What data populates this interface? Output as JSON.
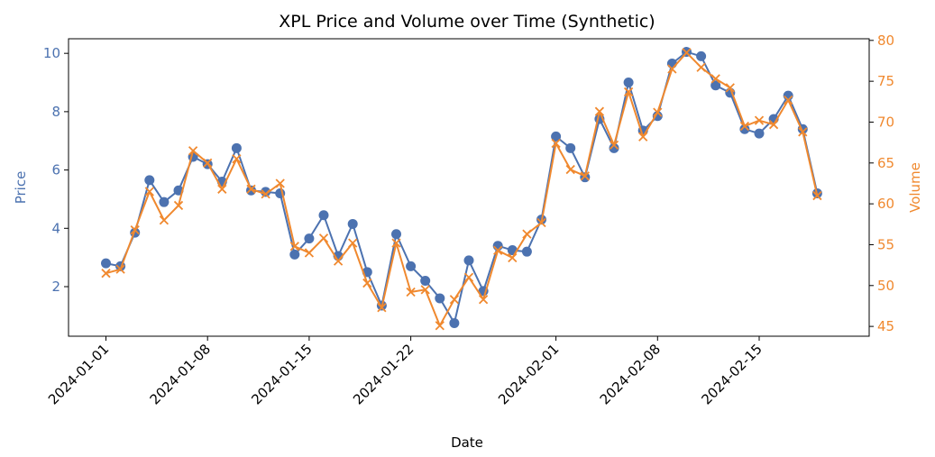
{
  "chart_data": {
    "type": "line",
    "title": "XPL Price and Volume over Time (Synthetic)",
    "xlabel": "Date",
    "ylabel_left": "Price",
    "ylabel_right": "Volume",
    "start_date": "2024-01-01",
    "x_tick_labels": [
      "2024-01-01",
      "2024-01-08",
      "2024-01-15",
      "2024-01-22",
      "2024-02-01",
      "2024-02-08",
      "2024-02-15"
    ],
    "x_tick_day_offsets": [
      0,
      7,
      14,
      21,
      31,
      38,
      45
    ],
    "y_left_ticks": [
      2,
      4,
      6,
      8,
      10
    ],
    "y_left_lim": [
      0.3,
      10.5
    ],
    "y_right_ticks": [
      45,
      50,
      55,
      60,
      65,
      70,
      75,
      80
    ],
    "y_right_lim": [
      43.8,
      80.2
    ],
    "colors": {
      "price": "#4c72b0",
      "volume": "#f0892f"
    },
    "series": [
      {
        "name": "Price",
        "axis": "left",
        "marker": "circle",
        "values": [
          2.8,
          2.7,
          3.85,
          5.65,
          4.9,
          5.3,
          6.45,
          6.2,
          5.6,
          6.75,
          5.3,
          5.25,
          5.2,
          3.1,
          3.65,
          4.45,
          3.05,
          4.15,
          2.5,
          1.35,
          3.8,
          2.7,
          2.2,
          1.6,
          0.75,
          2.9,
          1.85,
          3.4,
          3.25,
          3.2,
          4.3,
          7.15,
          6.75,
          5.75,
          7.75,
          6.75,
          9.0,
          7.35,
          7.85,
          9.65,
          10.05,
          9.9,
          8.9,
          8.65,
          7.4,
          7.25,
          7.75,
          8.55,
          7.4,
          5.2
        ]
      },
      {
        "name": "Volume",
        "axis": "right",
        "marker": "x",
        "values": [
          51.5,
          52.0,
          56.8,
          61.5,
          58.0,
          59.8,
          66.5,
          65.0,
          61.8,
          65.5,
          61.8,
          61.2,
          62.5,
          54.8,
          54.0,
          55.8,
          53.0,
          55.2,
          50.3,
          47.3,
          55.2,
          49.2,
          49.5,
          45.1,
          48.3,
          51.0,
          48.3,
          54.3,
          53.4,
          56.3,
          57.7,
          67.4,
          64.2,
          63.4,
          71.3,
          67.2,
          73.7,
          68.2,
          71.2,
          76.5,
          78.5,
          76.7,
          75.3,
          74.2,
          69.5,
          70.2,
          69.7,
          72.7,
          68.8,
          61.0
        ]
      }
    ]
  }
}
